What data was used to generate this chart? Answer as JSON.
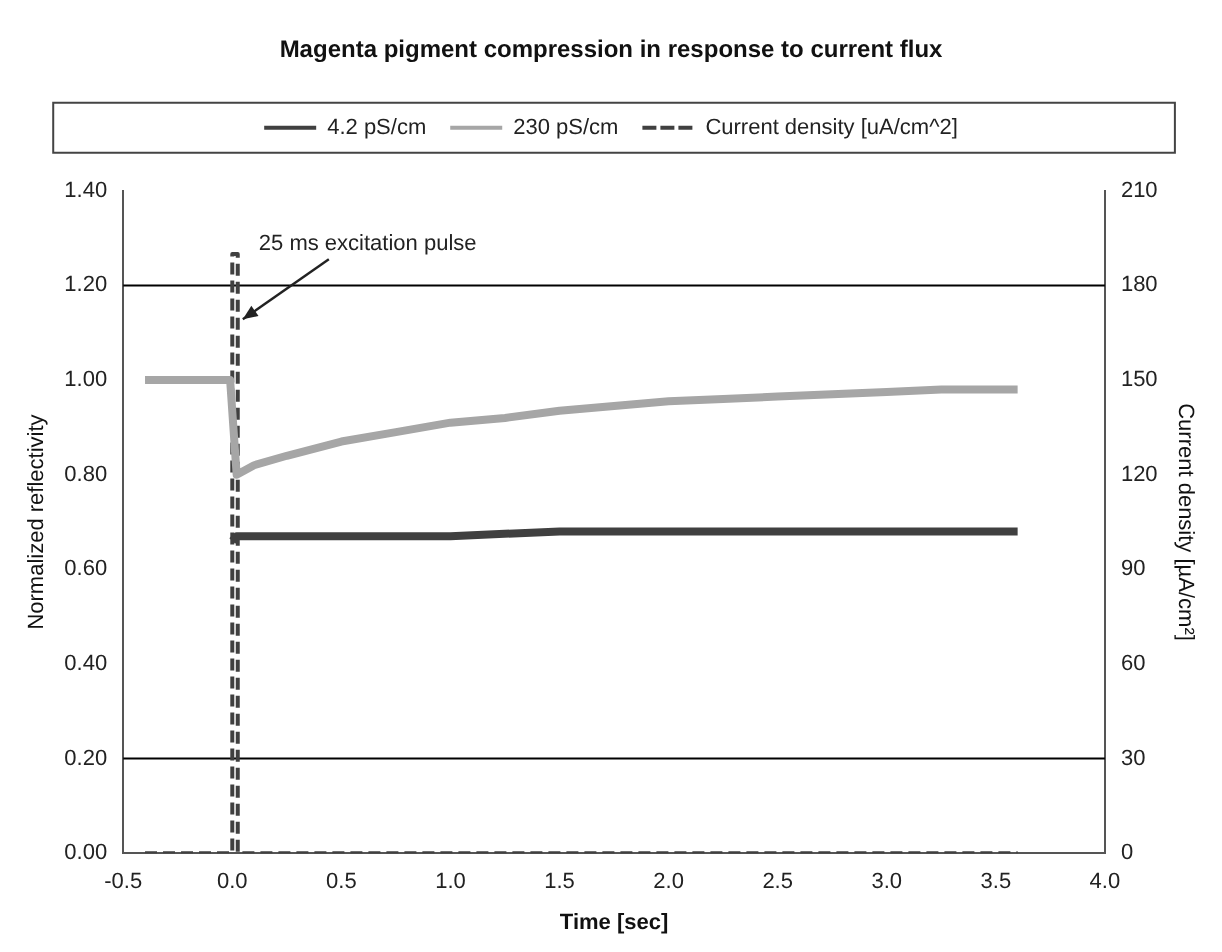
{
  "chart_data": {
    "type": "line",
    "title": "Magenta pigment compression in response to current flux",
    "xlabel": "Time [sec]",
    "ylabel": "Normalized reflectivity",
    "y2label": "Current density [µA/cm²]",
    "legend": "top",
    "grid": false,
    "marker": "none",
    "series": [
      {
        "name": "4.2 pS/cm",
        "color": "#404040",
        "x": [
          0.0,
          0.02,
          0.25,
          0.5,
          1.0,
          1.5,
          2.0,
          2.5,
          3.0,
          3.6
        ],
        "values": [
          0.66,
          0.67,
          0.67,
          0.67,
          0.67,
          0.68,
          0.68,
          0.68,
          0.68,
          0.68
        ]
      },
      {
        "name": "230 pS/cm",
        "color": "#a6a6a6",
        "x": [
          -0.4,
          -0.2,
          -0.01,
          0.02,
          0.1,
          0.25,
          0.5,
          0.75,
          1.0,
          1.25,
          1.5,
          1.75,
          2.0,
          2.25,
          2.5,
          2.75,
          3.0,
          3.25,
          3.6
        ],
        "values": [
          1.0,
          1.0,
          1.0,
          0.8,
          0.82,
          0.84,
          0.87,
          0.89,
          0.91,
          0.92,
          0.935,
          0.945,
          0.955,
          0.96,
          0.965,
          0.97,
          0.975,
          0.98,
          0.98
        ]
      },
      {
        "name": "Current density [uA/cm^2]",
        "color": "#404040",
        "axis": "y2",
        "line_style": "dashed",
        "x": [
          -0.4,
          0.0,
          0.0,
          0.025,
          0.025,
          3.6
        ],
        "values": [
          0,
          0,
          190,
          190,
          0,
          0
        ]
      }
    ],
    "xlim": [
      -0.5,
      4.0
    ],
    "xticks": [
      {
        "value": -0.5,
        "label": "-0.5"
      },
      {
        "value": 0,
        "label": "0.0"
      },
      {
        "value": 0.5,
        "label": "0.5"
      },
      {
        "value": 1,
        "label": "1.0"
      },
      {
        "value": 1.5,
        "label": "1.5"
      },
      {
        "value": 2,
        "label": "2.0"
      },
      {
        "value": 2.5,
        "label": "2.5"
      },
      {
        "value": 3,
        "label": "3.0"
      },
      {
        "value": 3.5,
        "label": "3.5"
      },
      {
        "value": 4,
        "label": "4.0"
      }
    ],
    "ylim": [
      0,
      1.4
    ],
    "yticks": [
      {
        "value": 0,
        "label": "0.00"
      },
      {
        "value": 0.2,
        "label": "0.20"
      },
      {
        "value": 0.4,
        "label": "0.40"
      },
      {
        "value": 0.6,
        "label": "0.60"
      },
      {
        "value": 0.8,
        "label": "0.80"
      },
      {
        "value": 1,
        "label": "1.00"
      },
      {
        "value": 1.2,
        "label": "1.20"
      },
      {
        "value": 1.4,
        "label": "1.40"
      }
    ],
    "y2lim": [
      0,
      210
    ],
    "y2ticks": [
      0,
      30,
      60,
      90,
      120,
      150,
      180,
      210
    ],
    "ref_lines": [
      {
        "axis": "y",
        "value": 1.2,
        "color": "#000000"
      },
      {
        "axis": "y",
        "value": 0.2,
        "color": "#000000"
      }
    ],
    "annotations": [
      {
        "text": "25 ms excitation pulse",
        "x": 0.03,
        "y": 1.12
      }
    ]
  }
}
